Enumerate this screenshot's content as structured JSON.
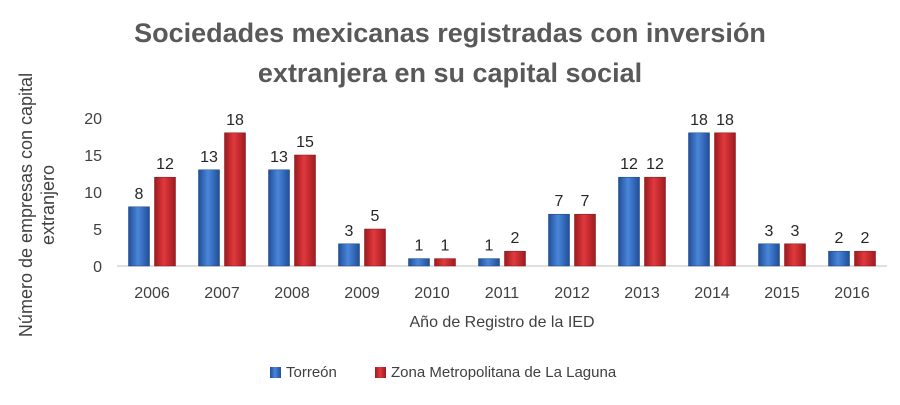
{
  "chart_data": {
    "type": "bar",
    "title_lines": [
      "Sociedades mexicanas registradas con inversión",
      "extranjera en su capital social"
    ],
    "xlabel": "Año de Registro de la IED",
    "ylabel_lines": [
      "Número de empresas con capital",
      "extranjero"
    ],
    "categories": [
      "2006",
      "2007",
      "2008",
      "2009",
      "2010",
      "2011",
      "2012",
      "2013",
      "2014",
      "2015",
      "2016"
    ],
    "series": [
      {
        "name": "Torreón",
        "color": "#2E6EC8",
        "values": [
          8,
          13,
          13,
          3,
          1,
          1,
          7,
          12,
          18,
          3,
          2
        ]
      },
      {
        "name": "Zona Metropolitana de La Laguna",
        "color": "#D42A2F",
        "values": [
          12,
          18,
          15,
          5,
          1,
          2,
          7,
          12,
          18,
          3,
          2
        ]
      }
    ],
    "ylim": [
      0,
      20
    ],
    "yticks": [
      "0",
      "5",
      "10",
      "15",
      "20"
    ],
    "legend_position": "bottom",
    "grid": false
  }
}
